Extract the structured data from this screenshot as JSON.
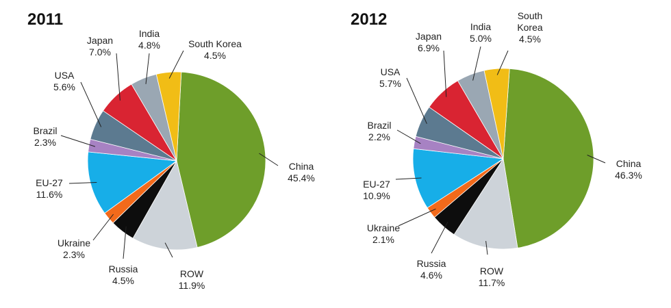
{
  "chart_data": [
    {
      "type": "pie",
      "title": "2011",
      "start_category": "China",
      "slices": [
        {
          "label": "China",
          "value": 45.4,
          "display": "45.4%",
          "color": "#6e9e2a"
        },
        {
          "label": "ROW",
          "value": 11.9,
          "display": "11.9%",
          "color": "#cdd3d9"
        },
        {
          "label": "Russia",
          "value": 4.5,
          "display": "4.5%",
          "color": "#0d0d0d"
        },
        {
          "label": "Ukraine",
          "value": 2.3,
          "display": "2.3%",
          "color": "#f26a1b"
        },
        {
          "label": "EU-27",
          "value": 11.6,
          "display": "11.6%",
          "color": "#17aee8"
        },
        {
          "label": "Brazil",
          "value": 2.3,
          "display": "2.3%",
          "color": "#a782c3"
        },
        {
          "label": "USA",
          "value": 5.6,
          "display": "5.6%",
          "color": "#5c7a90"
        },
        {
          "label": "Japan",
          "value": 7.0,
          "display": "7.0%",
          "color": "#d92432"
        },
        {
          "label": "India",
          "value": 4.8,
          "display": "4.8%",
          "color": "#9aa7b3"
        },
        {
          "label": "South Korea",
          "value": 4.5,
          "display": "4.5%",
          "color": "#f1bd16"
        }
      ]
    },
    {
      "type": "pie",
      "title": "2012",
      "start_category": "China",
      "slices": [
        {
          "label": "China",
          "value": 46.3,
          "display": "46.3%",
          "color": "#6e9e2a"
        },
        {
          "label": "ROW",
          "value": 11.7,
          "display": "11.7%",
          "color": "#cdd3d9"
        },
        {
          "label": "Russia",
          "value": 4.6,
          "display": "4.6%",
          "color": "#0d0d0d"
        },
        {
          "label": "Ukraine",
          "value": 2.1,
          "display": "2.1%",
          "color": "#f26a1b"
        },
        {
          "label": "EU-27",
          "value": 10.9,
          "display": "10.9%",
          "color": "#17aee8"
        },
        {
          "label": "Brazil",
          "value": 2.2,
          "display": "2.2%",
          "color": "#a782c3"
        },
        {
          "label": "USA",
          "value": 5.7,
          "display": "5.7%",
          "color": "#5c7a90"
        },
        {
          "label": "Japan",
          "value": 6.9,
          "display": "6.9%",
          "color": "#d92432"
        },
        {
          "label": "India",
          "value": 5.0,
          "display": "5.0%",
          "color": "#9aa7b3"
        },
        {
          "label": "South Korea",
          "value": 4.5,
          "display": "4.5%",
          "color": "#f1bd16",
          "label_lines": [
            "South",
            "Korea"
          ]
        }
      ]
    }
  ]
}
